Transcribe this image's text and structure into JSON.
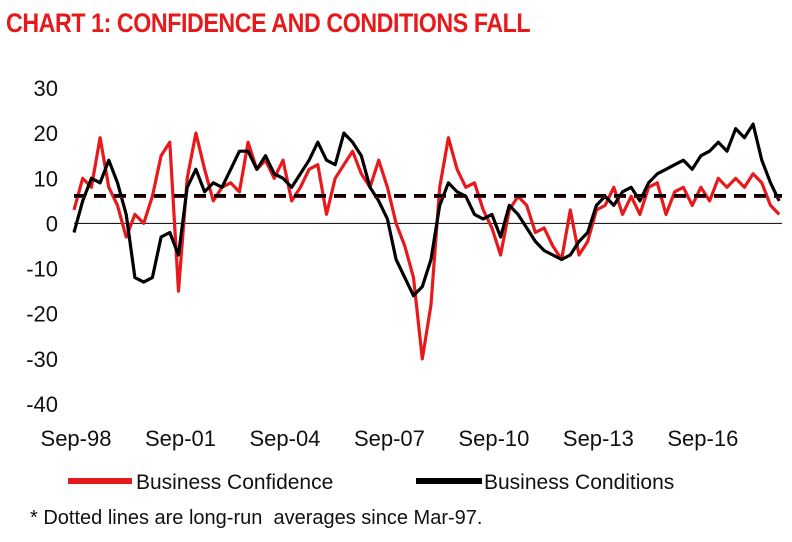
{
  "header": {
    "title": "CHART 1: CONFIDENCE AND CONDITIONS FALL"
  },
  "note": "* Dotted lines are long-run  averages since Mar-97.",
  "colors": {
    "title": "#e8191b",
    "confidence": "#e8191b",
    "conditions": "#000000"
  },
  "chart_data": {
    "type": "line",
    "title": "CHART 1: CONFIDENCE AND CONDITIONS FALL",
    "xlabel": "",
    "ylabel": "",
    "ylim": [
      -40,
      30
    ],
    "yticks": [
      "30",
      "20",
      "10",
      "0",
      "-10",
      "-20",
      "-30",
      "-40"
    ],
    "yticks_values": [
      30,
      20,
      10,
      0,
      -10,
      -20,
      -30,
      -40
    ],
    "xticks": [
      "Sep-98",
      "Sep-01",
      "Sep-04",
      "Sep-07",
      "Sep-10",
      "Sep-13",
      "Sep-16"
    ],
    "xticks_values": [
      1998.67,
      2001.67,
      2004.67,
      2007.67,
      2010.67,
      2013.67,
      2016.67
    ],
    "xlim": [
      1998.67,
      2019.0
    ],
    "grid": false,
    "legend_position": "bottom",
    "series": [
      {
        "name": "Business Confidence",
        "color": "#e8191b",
        "x": [
          1998.67,
          1998.92,
          1999.17,
          1999.42,
          1999.67,
          1999.92,
          2000.17,
          2000.42,
          2000.67,
          2000.92,
          2001.17,
          2001.42,
          2001.67,
          2001.92,
          2002.17,
          2002.42,
          2002.67,
          2002.92,
          2003.17,
          2003.42,
          2003.67,
          2003.92,
          2004.17,
          2004.42,
          2004.67,
          2004.92,
          2005.17,
          2005.42,
          2005.67,
          2005.92,
          2006.17,
          2006.42,
          2006.67,
          2006.92,
          2007.17,
          2007.42,
          2007.67,
          2007.92,
          2008.17,
          2008.42,
          2008.67,
          2008.92,
          2009.17,
          2009.42,
          2009.67,
          2009.92,
          2010.17,
          2010.42,
          2010.67,
          2010.92,
          2011.17,
          2011.42,
          2011.67,
          2011.92,
          2012.17,
          2012.42,
          2012.67,
          2012.92,
          2013.17,
          2013.42,
          2013.67,
          2013.92,
          2014.17,
          2014.42,
          2014.67,
          2014.92,
          2015.17,
          2015.42,
          2015.67,
          2015.92,
          2016.17,
          2016.42,
          2016.67,
          2016.92,
          2017.17,
          2017.42,
          2017.67,
          2017.92,
          2018.17,
          2018.42,
          2018.67,
          2018.92
        ],
        "values": [
          3,
          10,
          8,
          19,
          8,
          4,
          -3,
          2,
          0,
          6,
          15,
          18,
          -15,
          10,
          20,
          12,
          5,
          8,
          9,
          7,
          18,
          12,
          14,
          10,
          14,
          5,
          8,
          12,
          13,
          2,
          10,
          13,
          16,
          11,
          8,
          14,
          8,
          0,
          -5,
          -12,
          -30,
          -18,
          8,
          19,
          12,
          8,
          9,
          3,
          -1,
          -7,
          3,
          6,
          4,
          -2,
          -1,
          -5,
          -8,
          3,
          -7,
          -4,
          3,
          4,
          8,
          2,
          6,
          2,
          8,
          9,
          2,
          7,
          8,
          4,
          8,
          5,
          10,
          8,
          10,
          8,
          11,
          9,
          4,
          2
        ]
      },
      {
        "name": "Business Conditions",
        "color": "#000000",
        "x": [
          1998.67,
          1998.92,
          1999.17,
          1999.42,
          1999.67,
          1999.92,
          2000.17,
          2000.42,
          2000.67,
          2000.92,
          2001.17,
          2001.42,
          2001.67,
          2001.92,
          2002.17,
          2002.42,
          2002.67,
          2002.92,
          2003.17,
          2003.42,
          2003.67,
          2003.92,
          2004.17,
          2004.42,
          2004.67,
          2004.92,
          2005.17,
          2005.42,
          2005.67,
          2005.92,
          2006.17,
          2006.42,
          2006.67,
          2006.92,
          2007.17,
          2007.42,
          2007.67,
          2007.92,
          2008.17,
          2008.42,
          2008.67,
          2008.92,
          2009.17,
          2009.42,
          2009.67,
          2009.92,
          2010.17,
          2010.42,
          2010.67,
          2010.92,
          2011.17,
          2011.42,
          2011.67,
          2011.92,
          2012.17,
          2012.42,
          2012.67,
          2012.92,
          2013.17,
          2013.42,
          2013.67,
          2013.92,
          2014.17,
          2014.42,
          2014.67,
          2014.92,
          2015.17,
          2015.42,
          2015.67,
          2015.92,
          2016.17,
          2016.42,
          2016.67,
          2016.92,
          2017.17,
          2017.42,
          2017.67,
          2017.92,
          2018.17,
          2018.42,
          2018.67,
          2018.92
        ],
        "values": [
          -2,
          5,
          10,
          9,
          14,
          9,
          2,
          -12,
          -13,
          -12,
          -3,
          -2,
          -7,
          8,
          12,
          7,
          9,
          8,
          12,
          16,
          16,
          12,
          15,
          11,
          10,
          8,
          11,
          14,
          18,
          14,
          13,
          20,
          18,
          15,
          8,
          5,
          1,
          -8,
          -12,
          -16,
          -14,
          -8,
          4,
          9,
          7,
          6,
          2,
          1,
          2,
          -3,
          4,
          2,
          -1,
          -4,
          -6,
          -7,
          -8,
          -7,
          -4,
          -2,
          4,
          6,
          4,
          7,
          8,
          5,
          9,
          11,
          12,
          13,
          14,
          12,
          15,
          16,
          18,
          16,
          21,
          19,
          22,
          14,
          9,
          5
        ]
      }
    ],
    "reference_lines": [
      {
        "name": "Business Confidence long-run average",
        "value": 6,
        "color": "#e8191b",
        "dashed": true
      },
      {
        "name": "Business Conditions long-run average",
        "value": 6,
        "color": "#000000",
        "dashed": true
      }
    ]
  }
}
